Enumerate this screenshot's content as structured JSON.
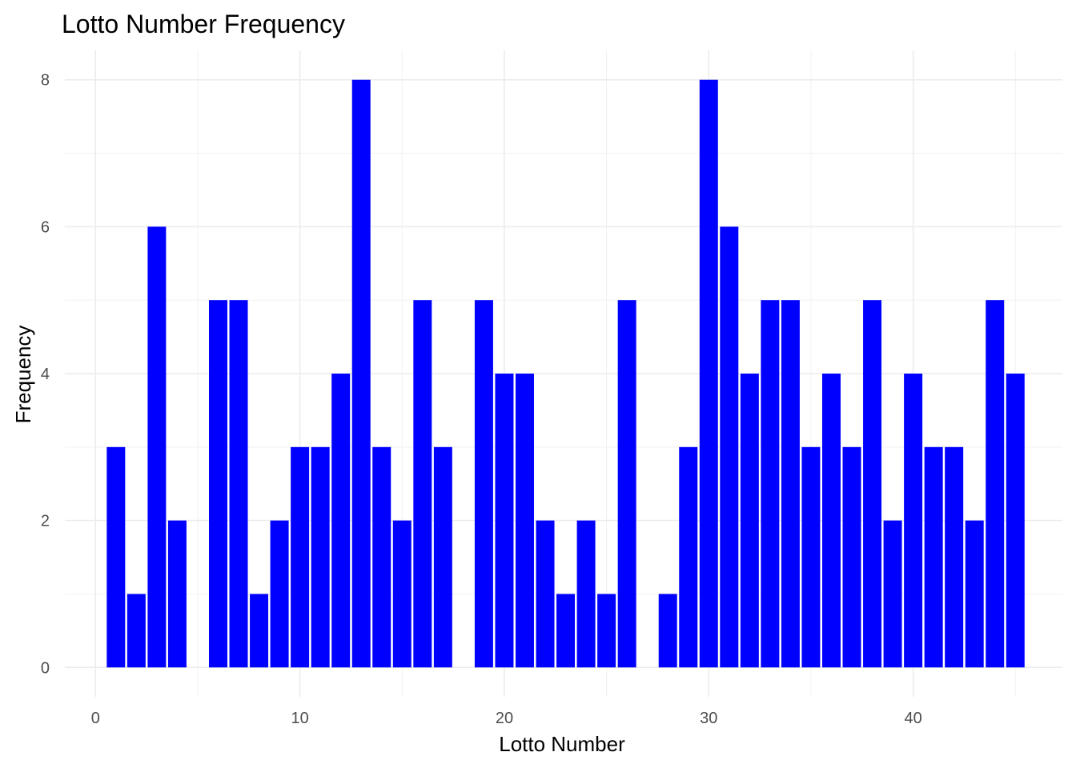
{
  "chart_data": {
    "type": "bar",
    "title": "Lotto Number Frequency",
    "xlabel": "Lotto Number",
    "ylabel": "Frequency",
    "x": [
      1,
      2,
      3,
      4,
      6,
      7,
      8,
      9,
      10,
      11,
      12,
      13,
      14,
      15,
      16,
      17,
      19,
      20,
      21,
      22,
      23,
      24,
      25,
      26,
      28,
      29,
      30,
      31,
      32,
      33,
      34,
      35,
      36,
      37,
      38,
      39,
      40,
      41,
      42,
      43,
      44,
      45
    ],
    "values": [
      3,
      1,
      6,
      2,
      5,
      5,
      1,
      2,
      3,
      3,
      4,
      8,
      3,
      2,
      5,
      3,
      5,
      4,
      4,
      2,
      1,
      2,
      1,
      5,
      1,
      3,
      8,
      6,
      4,
      5,
      5,
      3,
      4,
      3,
      5,
      2,
      4,
      3,
      3,
      2,
      5,
      4
    ],
    "xlim": [
      -1.5,
      47.3
    ],
    "ylim": [
      -0.4,
      8.4
    ],
    "x_ticks": [
      0,
      10,
      20,
      30,
      40
    ],
    "y_ticks": [
      0,
      2,
      4,
      6,
      8
    ],
    "bar_color": "#0000FF",
    "grid": true,
    "legend": "none"
  }
}
